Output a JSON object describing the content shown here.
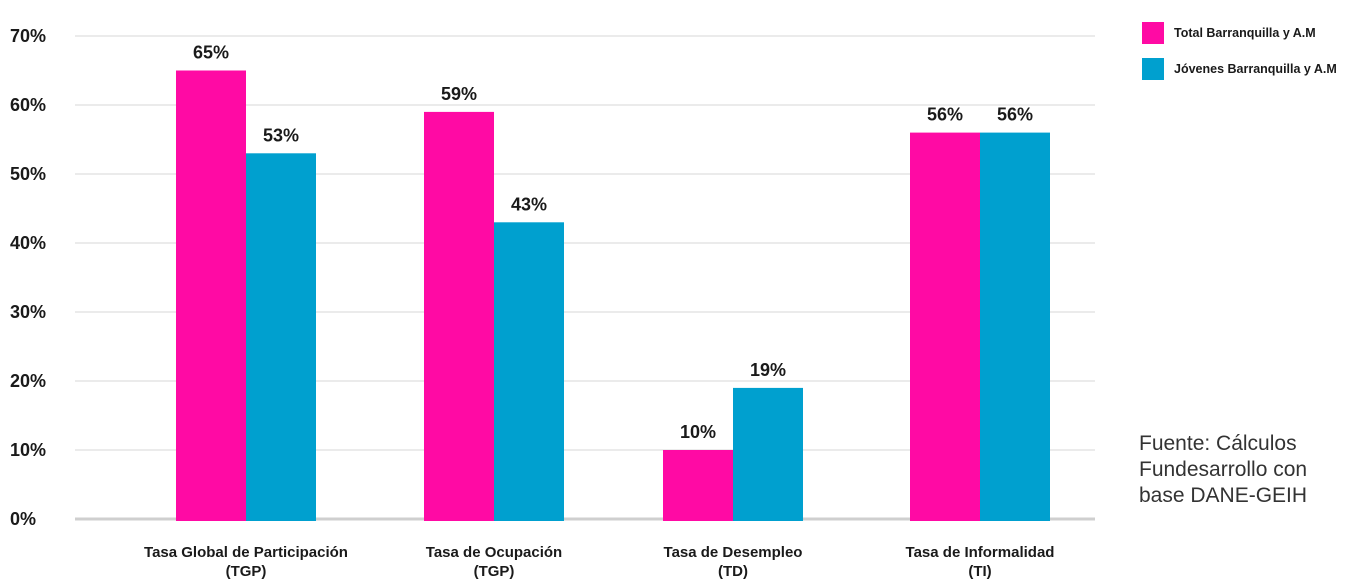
{
  "chart_data": {
    "type": "bar",
    "categories": [
      [
        "Tasa Global de Participación",
        "(TGP)"
      ],
      [
        "Tasa de Ocupación",
        "(TGP)"
      ],
      [
        "Tasa de Desempleo",
        "(TD)"
      ],
      [
        "Tasa de Informalidad",
        "(TI)"
      ]
    ],
    "series": [
      {
        "name": "Total Barranquilla y A.M",
        "color": "#ff0aa4",
        "values": [
          65,
          59,
          10,
          56
        ],
        "labels": [
          "65%",
          "59%",
          "10%",
          "56%"
        ]
      },
      {
        "name": "Jóvenes Barranquilla y A.M",
        "color": "#00a0cf",
        "values": [
          53,
          43,
          19,
          56
        ],
        "labels": [
          "53%",
          "43%",
          "19%",
          "56%"
        ]
      }
    ],
    "ylim": [
      0,
      70
    ],
    "yticks": [
      0,
      10,
      20,
      30,
      40,
      50,
      60,
      70
    ],
    "ytick_labels": [
      "0%",
      "10%",
      "20%",
      "30%",
      "40%",
      "50%",
      "60%",
      "70%"
    ],
    "grid": true,
    "legend_position": "top-right"
  },
  "source": {
    "lines": [
      "Fuente: Cálculos",
      "Fundesarrollo con",
      "base DANE-GEIH"
    ]
  }
}
